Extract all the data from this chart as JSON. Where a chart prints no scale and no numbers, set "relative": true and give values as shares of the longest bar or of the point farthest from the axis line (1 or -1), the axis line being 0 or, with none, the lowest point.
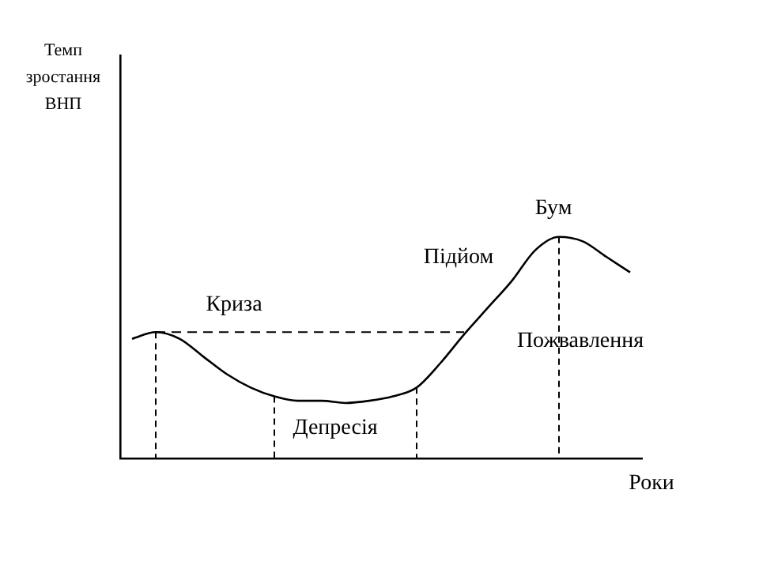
{
  "chart_data": {
    "type": "line",
    "relative": true,
    "xlabel": "Роки",
    "categories": [
      null,
      null,
      null,
      null,
      null,
      null,
      null,
      null,
      null,
      null,
      null,
      null,
      null,
      null,
      null,
      null,
      null,
      null,
      null,
      null,
      null,
      null
    ],
    "series": [
      {
        "color": "#000000",
        "values": [
          0.54,
          0.57,
          0.54,
          0.46,
          0.38,
          0.32,
          0.28,
          0.26,
          0.26,
          0.25,
          0.26,
          0.28,
          0.32,
          0.43,
          0.56,
          0.68,
          0.8,
          0.94,
          1,
          0.98,
          0.91,
          0.84
        ]
      }
    ],
    "annotations": [
      "Темп\nзростання\nВНП",
      "Криза",
      "Депресія",
      "Пожвавлення",
      "Підйом",
      "Бум"
    ],
    "ref_lines": [
      {
        "axis": "y",
        "value": 0.57,
        "line_style": "dashed"
      }
    ],
    "grid": false,
    "legend": false,
    "marker": "none",
    "line_style": "solid"
  }
}
